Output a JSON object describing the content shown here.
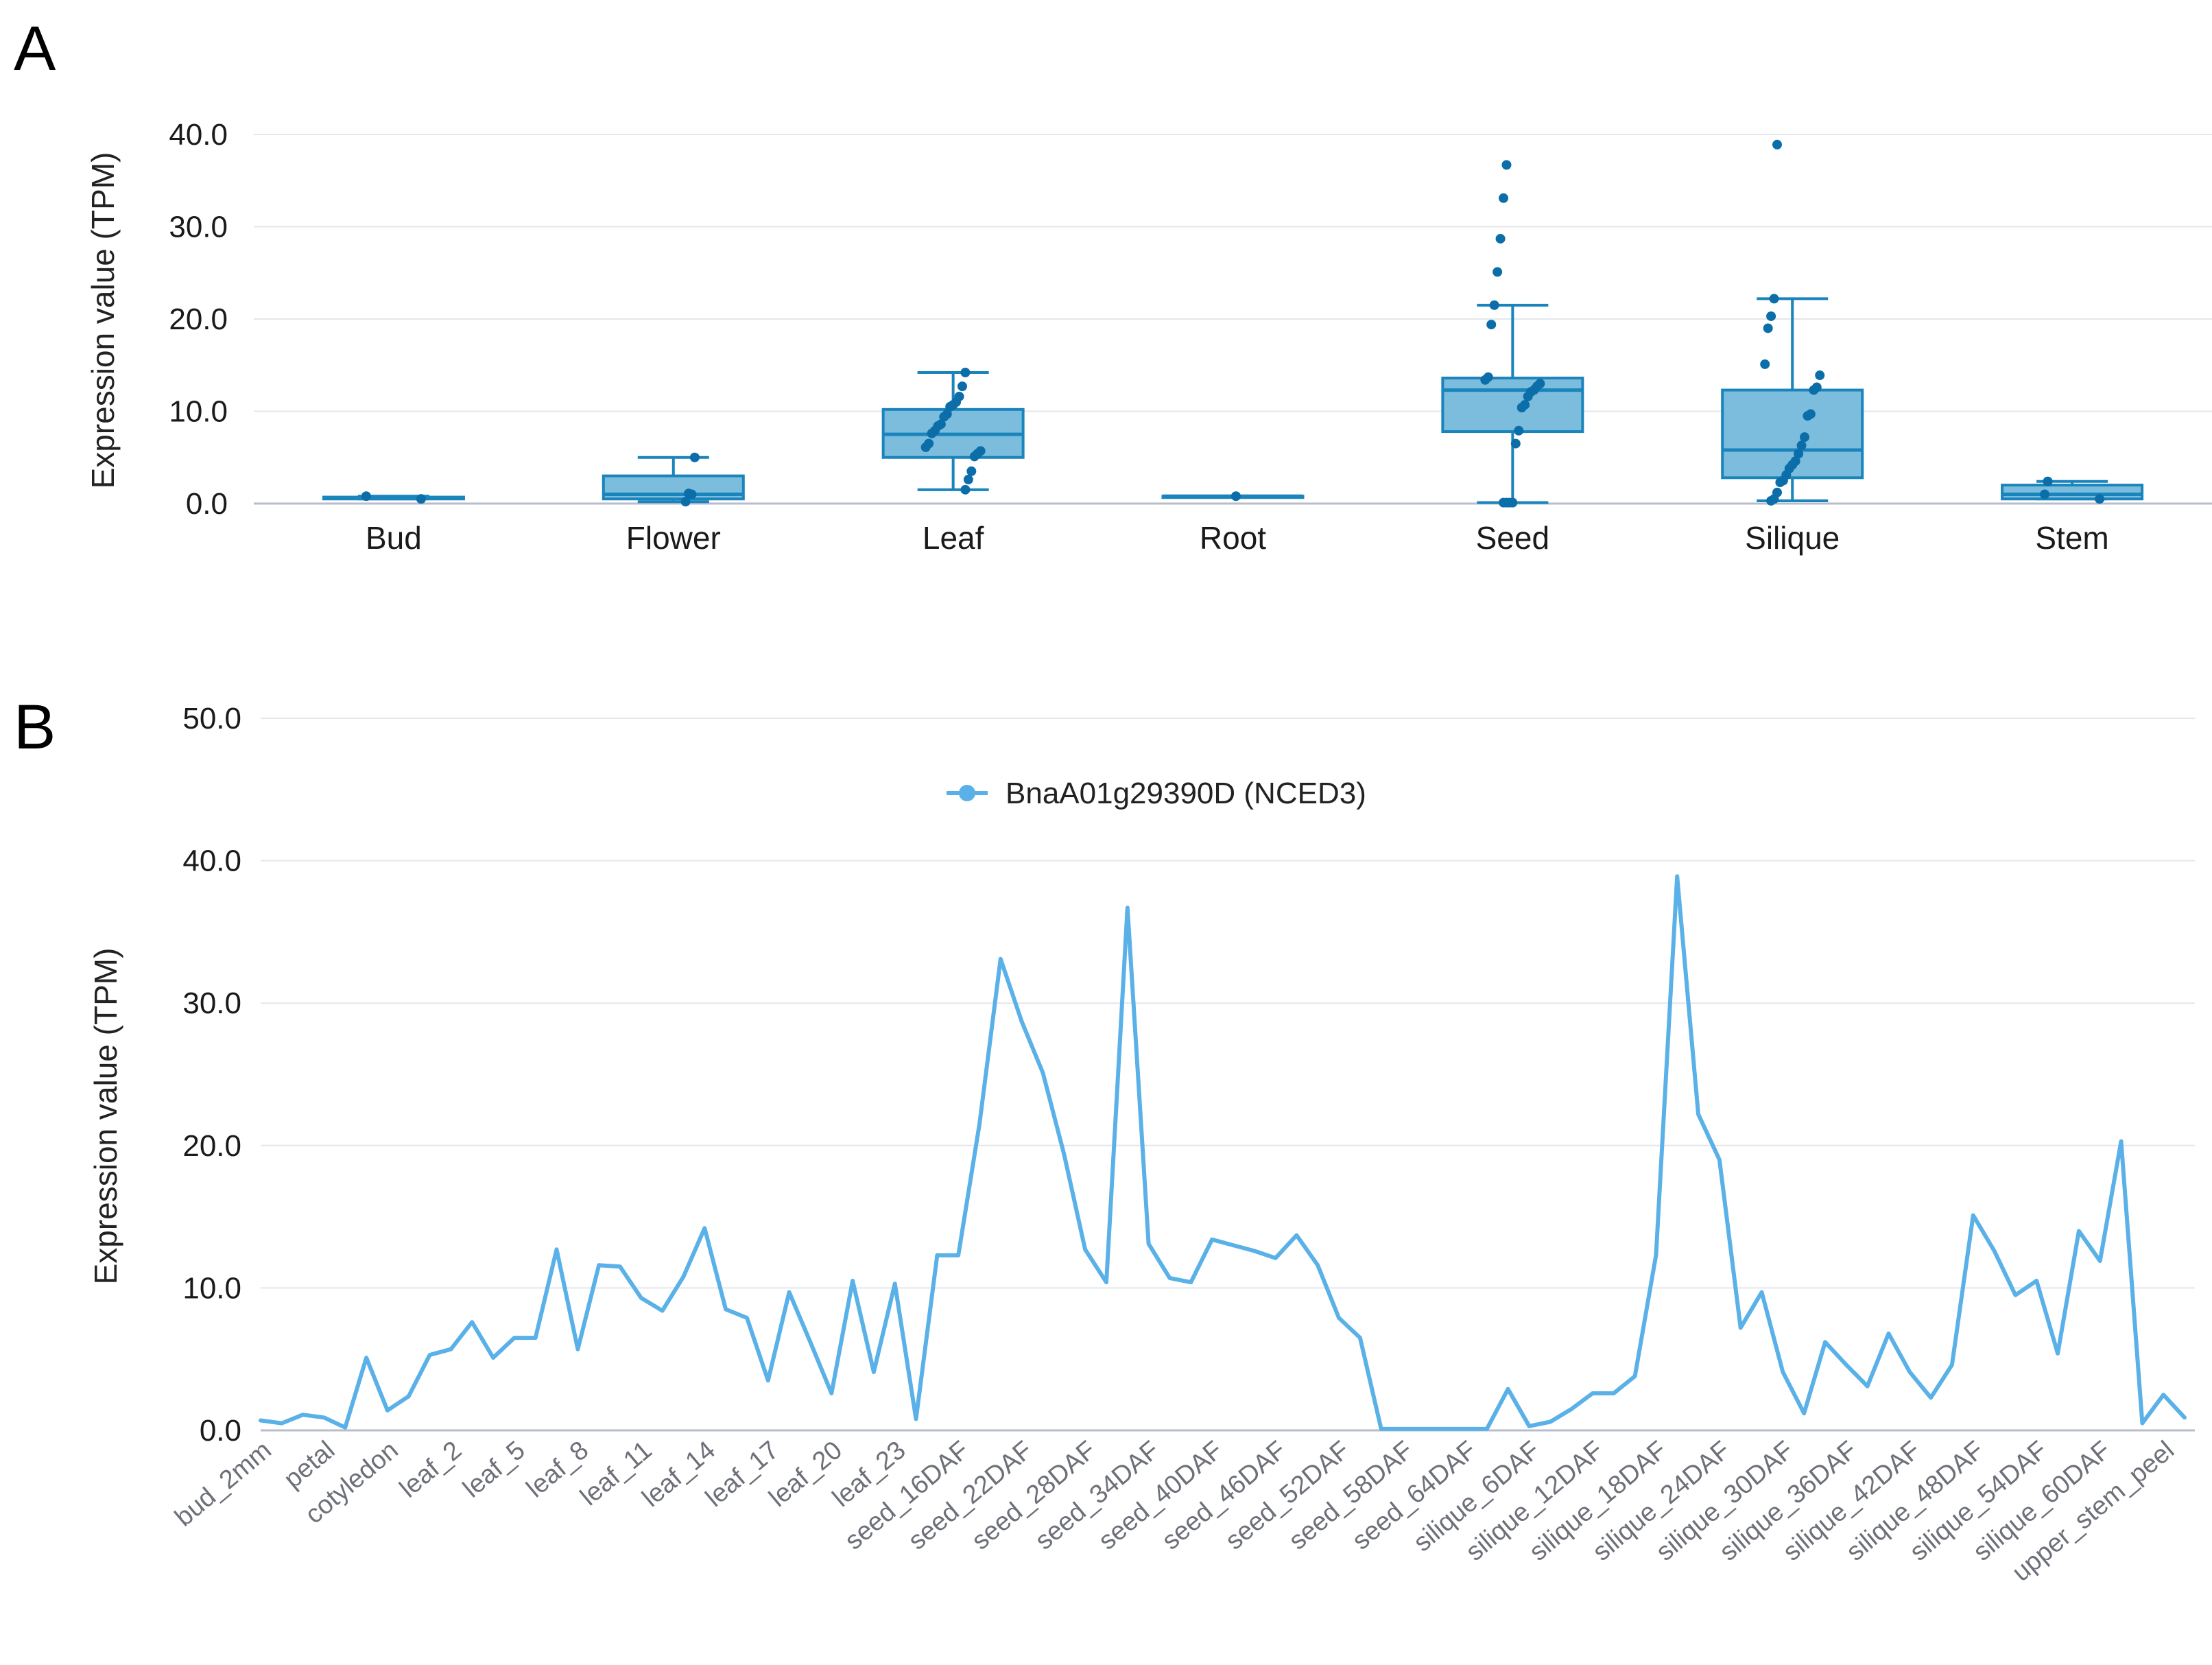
{
  "colors": {
    "box_fill": "#7cbcdc",
    "box_stroke": "#1a84bc",
    "point": "#0b6ea8",
    "line": "#5ab1e8",
    "grid": "#e4e6ec"
  },
  "chart_data": [
    {
      "panel": "A",
      "type": "box",
      "ylabel": "Expression value (TPM)",
      "ylim": [
        0,
        40
      ],
      "yticks": [
        "0.0",
        "10.0",
        "20.0",
        "30.0",
        "40.0"
      ],
      "categories": [
        "Bud",
        "Flower",
        "Leaf",
        "Root",
        "Seed",
        "Silique",
        "Stem"
      ],
      "boxes": [
        {
          "name": "Bud",
          "min": 0.5,
          "q1": 0.5,
          "median": 0.6,
          "q3": 0.7,
          "max": 0.8,
          "points": [
            0.8,
            0.5
          ]
        },
        {
          "name": "Flower",
          "min": 0.2,
          "q1": 0.5,
          "median": 1.0,
          "q3": 3.0,
          "max": 5.0,
          "points": [
            5.0,
            1.0,
            1.1,
            0.2
          ]
        },
        {
          "name": "Leaf",
          "min": 1.5,
          "q1": 5.0,
          "median": 7.5,
          "q3": 10.2,
          "max": 14.2,
          "points": [
            14.2,
            12.7,
            11.6,
            11.0,
            10.7,
            10.5,
            9.7,
            9.4,
            8.6,
            8.4,
            7.9,
            7.6,
            6.5,
            6.1,
            5.7,
            5.4,
            5.1,
            3.5,
            2.6,
            1.5
          ]
        },
        {
          "name": "Root",
          "min": 0.8,
          "q1": 0.8,
          "median": 0.8,
          "q3": 0.8,
          "max": 0.8,
          "points": [
            0.8
          ]
        },
        {
          "name": "Seed",
          "min": 0.1,
          "q1": 7.8,
          "median": 12.3,
          "q3": 13.6,
          "max": 21.5,
          "points": [
            36.7,
            33.1,
            28.7,
            25.1,
            21.5,
            19.4,
            13.7,
            13.4,
            13.0,
            12.7,
            12.3,
            12.1,
            11.6,
            10.7,
            10.4,
            7.9,
            6.5,
            0.1,
            0.1,
            0.1,
            0.1
          ]
        },
        {
          "name": "Silique",
          "min": 0.3,
          "q1": 2.8,
          "median": 5.8,
          "q3": 12.3,
          "max": 22.2,
          "points": [
            38.9,
            22.2,
            20.3,
            19.0,
            15.1,
            13.9,
            12.6,
            12.3,
            9.7,
            9.5,
            7.2,
            6.3,
            5.4,
            4.6,
            4.2,
            3.8,
            3.1,
            2.5,
            2.3,
            1.2,
            0.5,
            0.3
          ]
        },
        {
          "name": "Stem",
          "min": 0.5,
          "q1": 0.5,
          "median": 1.0,
          "q3": 2.0,
          "max": 2.4,
          "points": [
            2.4,
            1.0,
            0.5
          ]
        }
      ]
    },
    {
      "panel": "B",
      "type": "line",
      "ylabel": "Expression value (TPM)",
      "ylim": [
        0,
        50
      ],
      "yticks": [
        "0.0",
        "10.0",
        "20.0",
        "30.0",
        "40.0",
        "50.0"
      ],
      "legend": [
        "BnaA01g29390D (NCED3)"
      ],
      "tick_labels": [
        "bud_2mm",
        "petal",
        "cotyledon",
        "leaf_2",
        "leaf_5",
        "leaf_8",
        "leaf_11",
        "leaf_14",
        "leaf_17",
        "leaf_20",
        "leaf_23",
        "seed_16DAF",
        "seed_22DAF",
        "seed_28DAF",
        "seed_34DAF",
        "seed_40DAF",
        "seed_46DAF",
        "seed_52DAF",
        "seed_58DAF",
        "seed_64DAF",
        "silique_6DAF",
        "silique_12DAF",
        "silique_18DAF",
        "silique_24DAF",
        "silique_30DAF",
        "silique_36DAF",
        "silique_42DAF",
        "silique_48DAF",
        "silique_54DAF",
        "silique_60DAF",
        "upper_stem_peel"
      ],
      "series": [
        {
          "name": "BnaA01g29390D (NCED3)",
          "values": [
            0.7,
            0.5,
            1.1,
            0.9,
            0.2,
            5.1,
            1.4,
            2.4,
            5.3,
            5.7,
            7.6,
            5.1,
            6.5,
            6.5,
            12.7,
            5.7,
            11.6,
            11.5,
            9.3,
            8.4,
            10.8,
            14.2,
            8.5,
            7.9,
            3.5,
            9.7,
            6.2,
            2.6,
            10.5,
            4.1,
            10.3,
            0.8,
            12.3,
            12.3,
            21.5,
            33.1,
            28.7,
            25.1,
            19.4,
            12.7,
            10.4,
            36.7,
            13.1,
            10.7,
            10.4,
            13.4,
            13.0,
            12.6,
            12.1,
            13.7,
            11.6,
            7.9,
            6.5,
            0.1,
            0.1,
            0.1,
            0.1,
            0.1,
            0.1,
            2.9,
            0.3,
            0.6,
            1.5,
            2.6,
            2.6,
            3.8,
            12.3,
            38.9,
            22.2,
            19.0,
            7.2,
            9.7,
            4.1,
            1.2,
            6.2,
            4.6,
            3.1,
            6.8,
            4.1,
            2.3,
            4.6,
            15.1,
            12.6,
            9.5,
            10.5,
            5.4,
            14.0,
            11.9,
            20.3,
            0.5,
            2.5,
            0.9
          ]
        }
      ]
    }
  ]
}
